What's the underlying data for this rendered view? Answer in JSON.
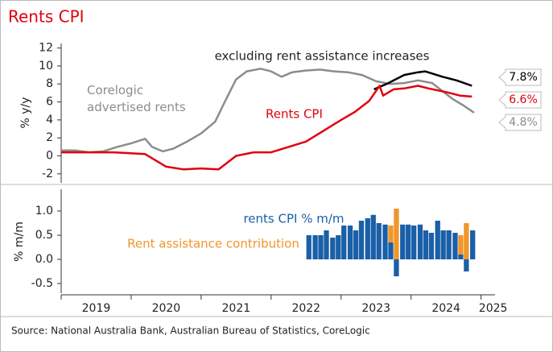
{
  "chart_data": [
    {
      "type": "line",
      "title": "Rents CPI",
      "ylabel": "% y/y",
      "xlim": [
        2019,
        2025.2
      ],
      "ylim": [
        -3,
        12.5
      ],
      "yticks": [
        -2,
        0,
        2,
        4,
        6,
        8,
        10,
        12
      ],
      "annotation": "excluding rent assistance increases",
      "series": [
        {
          "name": "Corelogic advertised rents",
          "color": "#8c8c8c",
          "end_label": "4.8%",
          "x": [
            2019.0,
            2019.2,
            2019.4,
            2019.6,
            2019.8,
            2020.0,
            2020.2,
            2020.3,
            2020.45,
            2020.6,
            2020.8,
            2021.0,
            2021.2,
            2021.35,
            2021.5,
            2021.65,
            2021.85,
            2022.0,
            2022.15,
            2022.3,
            2022.5,
            2022.7,
            2022.9,
            2023.1,
            2023.3,
            2023.5,
            2023.7,
            2023.9,
            2024.1,
            2024.3,
            2024.45,
            2024.6,
            2024.75,
            2024.9
          ],
          "values": [
            0.6,
            0.6,
            0.4,
            0.5,
            1.0,
            1.4,
            1.9,
            1.0,
            0.5,
            0.8,
            1.6,
            2.5,
            3.8,
            6.2,
            8.5,
            9.4,
            9.7,
            9.4,
            8.8,
            9.3,
            9.5,
            9.6,
            9.4,
            9.3,
            9.0,
            8.3,
            8.0,
            8.1,
            8.4,
            8.1,
            7.2,
            6.3,
            5.6,
            4.8
          ]
        },
        {
          "color": "#000000",
          "end_label": "7.8%",
          "x": [
            2023.47,
            2023.65,
            2023.9,
            2024.1,
            2024.2,
            2024.45,
            2024.65,
            2024.87
          ],
          "values": [
            7.4,
            8.0,
            9.0,
            9.3,
            9.4,
            8.8,
            8.4,
            7.8
          ]
        },
        {
          "name": "Rents CPI",
          "color": "#e0000f",
          "end_label": "6.6%",
          "x": [
            2019.0,
            2019.75,
            2020.2,
            2020.5,
            2020.75,
            2021.0,
            2021.25,
            2021.5,
            2021.75,
            2022.0,
            2022.25,
            2022.5,
            2022.75,
            2023.0,
            2023.2,
            2023.4,
            2023.55,
            2023.6,
            2023.75,
            2023.9,
            2024.1,
            2024.25,
            2024.5,
            2024.7,
            2024.87
          ],
          "values": [
            0.4,
            0.4,
            0.2,
            -1.2,
            -1.5,
            -1.4,
            -1.5,
            0.0,
            0.4,
            0.4,
            1.0,
            1.6,
            2.8,
            4.0,
            4.9,
            6.1,
            7.8,
            6.7,
            7.4,
            7.5,
            7.8,
            7.5,
            7.1,
            6.7,
            6.6
          ]
        }
      ]
    },
    {
      "type": "bar",
      "ylabel": "% m/m",
      "stacked": true,
      "xlim": [
        2019,
        2025.2
      ],
      "ylim": [
        -0.7,
        1.45
      ],
      "yticks": [
        -0.5,
        {
          "value": 0,
          "label": "0.0"
        },
        0.5,
        {
          "value": 1,
          "label": "1.0"
        }
      ],
      "xticks": [
        2019,
        2020,
        2021,
        2022,
        2023,
        2024,
        2025
      ],
      "x": [
        2022.54,
        2022.63,
        2022.71,
        2022.79,
        2022.88,
        2022.96,
        2023.04,
        2023.13,
        2023.21,
        2023.29,
        2023.38,
        2023.46,
        2023.54,
        2023.63,
        2023.71,
        2023.79,
        2023.88,
        2023.96,
        2024.04,
        2024.13,
        2024.21,
        2024.29,
        2024.38,
        2024.46,
        2024.54,
        2024.63,
        2024.71,
        2024.79,
        2024.88
      ],
      "series": [
        {
          "name": "rents CPI % m/m",
          "color": "#1a5fa8",
          "values": [
            0.5,
            0.5,
            0.5,
            0.6,
            0.45,
            0.5,
            0.7,
            0.7,
            0.6,
            0.8,
            0.85,
            0.92,
            0.75,
            0.72,
            0.35,
            -0.35,
            0.72,
            0.72,
            0.7,
            0.72,
            0.6,
            0.55,
            0.8,
            0.6,
            0.6,
            0.55,
            0.1,
            -0.25,
            0.6
          ]
        },
        {
          "name": "Rent assistance contribution",
          "color": "#f0962a",
          "values": [
            0,
            0,
            0,
            0,
            0,
            0,
            0,
            0,
            0,
            0,
            0,
            0,
            0,
            0,
            0.35,
            1.05,
            0,
            0,
            0,
            0,
            0,
            0,
            0,
            0,
            0,
            0,
            0.4,
            0.75,
            0
          ]
        }
      ]
    }
  ],
  "source": "Source: National Australia Bank, Australian Bureau of Statistics, CoreLogic"
}
